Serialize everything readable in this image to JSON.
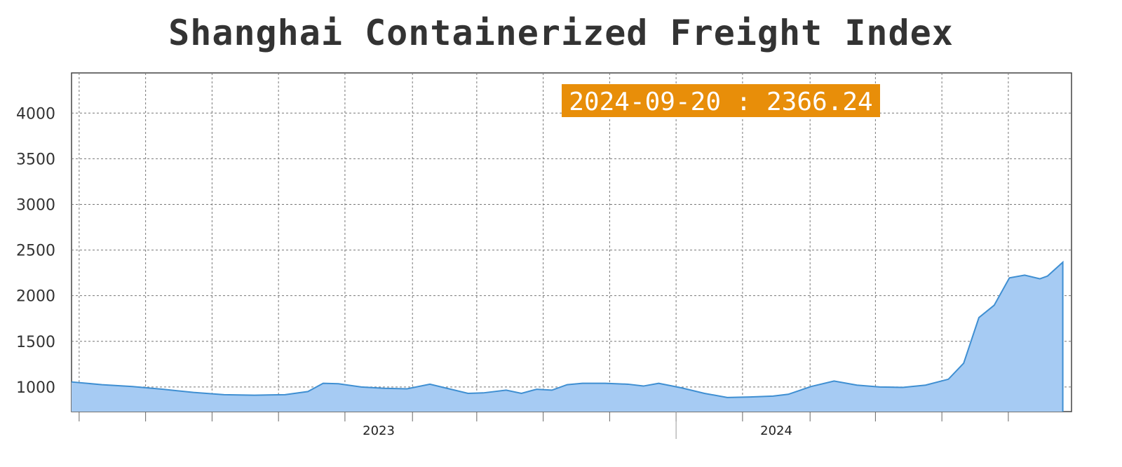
{
  "chart_data": {
    "type": "area",
    "title": "Shanghai Containerized Freight Index",
    "xlabel": "",
    "ylabel": "",
    "x_tick_labels": [
      {
        "label": "2023",
        "date": "2023-01-01"
      },
      {
        "label": "2024",
        "date": "2024-01-01"
      }
    ],
    "y_ticks": [
      1000,
      1500,
      2000,
      2500,
      3000,
      3500,
      4000
    ],
    "ylim": [
      730,
      4440
    ],
    "xlim": [
      "2022-03-25",
      "2024-09-28"
    ],
    "grid": true,
    "tooltip": "2024-09-20 : 2366.24",
    "colors": {
      "fill": "#a6cbf3",
      "line": "#3f8fd2",
      "tooltip_bg": "#e88e09",
      "grid": "#777777"
    },
    "series": [
      {
        "points": [
          [
            "2022-03-25",
            1055
          ],
          [
            "2022-04-22",
            1025
          ],
          [
            "2022-05-20",
            1005
          ],
          [
            "2022-06-17",
            975
          ],
          [
            "2022-07-15",
            940
          ],
          [
            "2022-08-12",
            915
          ],
          [
            "2022-09-09",
            910
          ],
          [
            "2022-10-07",
            915
          ],
          [
            "2022-10-28",
            950
          ],
          [
            "2022-11-11",
            1040
          ],
          [
            "2022-11-25",
            1035
          ],
          [
            "2022-12-16",
            1000
          ],
          [
            "2023-01-06",
            985
          ],
          [
            "2023-01-27",
            980
          ],
          [
            "2023-02-17",
            1030
          ],
          [
            "2023-03-10",
            970
          ],
          [
            "2023-03-24",
            930
          ],
          [
            "2023-04-07",
            935
          ],
          [
            "2023-04-28",
            965
          ],
          [
            "2023-05-12",
            930
          ],
          [
            "2023-05-26",
            975
          ],
          [
            "2023-06-09",
            965
          ],
          [
            "2023-06-23",
            1025
          ],
          [
            "2023-07-07",
            1040
          ],
          [
            "2023-07-28",
            1040
          ],
          [
            "2023-08-18",
            1030
          ],
          [
            "2023-09-01",
            1010
          ],
          [
            "2023-09-15",
            1040
          ],
          [
            "2023-10-06",
            990
          ],
          [
            "2023-10-27",
            930
          ],
          [
            "2023-11-17",
            885
          ],
          [
            "2023-12-08",
            890
          ],
          [
            "2023-12-29",
            900
          ],
          [
            "2024-01-12",
            920
          ],
          [
            "2024-02-02",
            1005
          ],
          [
            "2024-02-23",
            1065
          ],
          [
            "2024-03-15",
            1020
          ],
          [
            "2024-04-05",
            1000
          ],
          [
            "2024-04-26",
            995
          ],
          [
            "2024-05-17",
            1020
          ],
          [
            "2024-06-07",
            1085
          ],
          [
            "2024-06-21",
            1260
          ],
          [
            "2024-07-05",
            1760
          ],
          [
            "2024-07-19",
            1895
          ],
          [
            "2024-08-02",
            2195
          ],
          [
            "2024-08-16",
            2225
          ],
          [
            "2024-08-30",
            2185
          ],
          [
            "2024-09-06",
            2215
          ],
          [
            "2024-09-20",
            2366.24
          ]
        ]
      }
    ]
  }
}
